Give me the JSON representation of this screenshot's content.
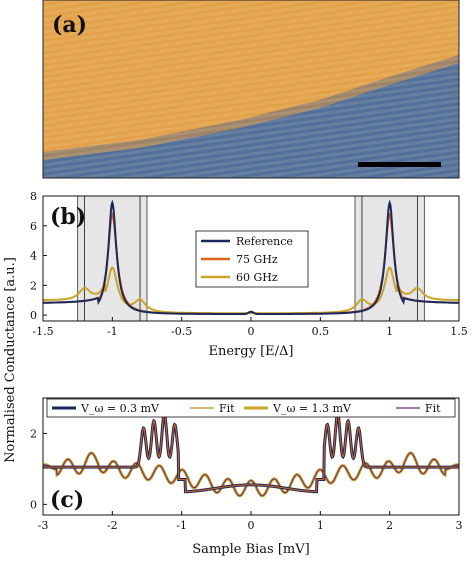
{
  "colors": {
    "reference": "#1b2a5a",
    "ghz75": "#d9641c",
    "ghz60": "#c9a62a",
    "fit_thin": "#c08a2a",
    "fit_purple": "#6a2d7a",
    "shade": "#e6e6e6",
    "image_orange": "#e3a24a",
    "image_blue": "#4f6f94"
  },
  "panels": {
    "a_label": "(a)",
    "b_label": "(b)",
    "c_label": "(c)"
  },
  "chart_data": [
    {
      "type": "line",
      "panel": "(b)",
      "xlabel": "Energy [E/Δ]",
      "ylabel": "",
      "xlim": [
        -1.5,
        1.5
      ],
      "ylim": [
        -0.4,
        8
      ],
      "xticks": [
        "-1.5",
        "-1",
        "-0.5",
        "0",
        "0.5",
        "1",
        "1.5"
      ],
      "yticks": [
        "0",
        "2",
        "4",
        "6",
        "8"
      ],
      "shaded_regions": [
        [
          -1.25,
          -1.2
        ],
        [
          -1.2,
          -0.8
        ],
        [
          -0.8,
          -0.75
        ],
        [
          0.75,
          0.8
        ],
        [
          0.8,
          1.2
        ],
        [
          1.2,
          1.25
        ]
      ],
      "legend": [
        "Reference",
        "75 GHz",
        "60 GHz"
      ],
      "series": [
        {
          "name": "Reference",
          "peak": 7.5,
          "width": 0.035,
          "base": 0.05
        },
        {
          "name": "75 GHz",
          "peak": 6.7,
          "width": 0.04,
          "base": 0.05
        },
        {
          "name": "60 GHz",
          "peak": 3.0,
          "width": 0.05,
          "base": 0.1,
          "sidebands": [
            -1.2,
            -0.8,
            0.8,
            1.2
          ]
        }
      ]
    },
    {
      "type": "line",
      "panel": "(c)",
      "xlabel": "Sample Bias [mV]",
      "ylabel": "",
      "xlim": [
        -3,
        3
      ],
      "ylim": [
        -0.3,
        3
      ],
      "xticks": [
        "-3",
        "-2",
        "-1",
        "0",
        "1",
        "2",
        "3"
      ],
      "yticks": [
        "0",
        "2"
      ],
      "legend": [
        "V_ω = 0.3 mV",
        "Fit",
        "V_ω = 1.3 mV",
        "Fit"
      ],
      "series": [
        {
          "name": "V_ω = 0.3 mV",
          "peaks": [
            -1.55,
            -1.4,
            -1.25,
            -1.1,
            1.1,
            1.25,
            1.4,
            1.55
          ],
          "peak_height": 2.4
        },
        {
          "name": "V_ω = 1.3 mV",
          "ripple_period": 0.3,
          "ripple_amp": 0.25,
          "base": 1.0
        }
      ]
    }
  ],
  "shared_ylabel": "Normalised Conductance [a.u.]"
}
